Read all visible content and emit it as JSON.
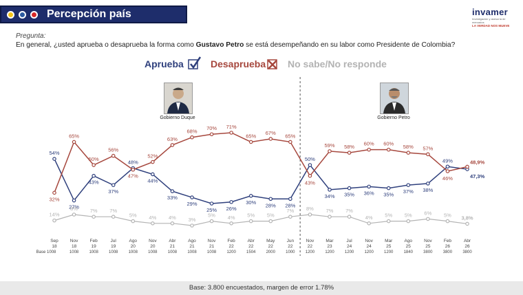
{
  "header": {
    "title": "Percepción país",
    "dot_colors": [
      "#f5c518",
      "#2c5aa0",
      "#d62828"
    ]
  },
  "logo": {
    "name": "invamer",
    "sub": "Investigación y asesoría de mercados",
    "tag": "LA VERDAD NOS MUEVE"
  },
  "question": {
    "label": "Pregunta:",
    "text_before": "En general, ¿usted aprueba o desaprueba la forma como ",
    "name": "Gustavo Petro",
    "text_after": " se está desempeñando en su labor como Presidente de Colombia?"
  },
  "legend": {
    "approve": "Aprueba",
    "disapprove": "Desaprueba",
    "dontknow": "No sabe/No responde"
  },
  "photos": {
    "left_caption": "Gobierno Duque",
    "right_caption": "Gobierno Petro"
  },
  "footer": "Base: 3.800 encuestados, margen de error 1.78%",
  "chart_data": {
    "type": "line",
    "x": [
      {
        "m": "Sep",
        "y": "18",
        "base": "Base 1008"
      },
      {
        "m": "Nov",
        "y": "18",
        "base": "1008"
      },
      {
        "m": "Feb",
        "y": "19",
        "base": "1008"
      },
      {
        "m": "Jul",
        "y": "19",
        "base": "1008"
      },
      {
        "m": "Ago",
        "y": "20",
        "base": "1008"
      },
      {
        "m": "Nov",
        "y": "20",
        "base": "1008"
      },
      {
        "m": "Abr",
        "y": "21",
        "base": "1008"
      },
      {
        "m": "Ago",
        "y": "21",
        "base": "1008"
      },
      {
        "m": "Nov",
        "y": "21",
        "base": "1008"
      },
      {
        "m": "Feb",
        "y": "22",
        "base": "1200"
      },
      {
        "m": "Abr",
        "y": "22",
        "base": "1504"
      },
      {
        "m": "May",
        "y": "22",
        "base": "2000"
      },
      {
        "m": "Jun",
        "y": "22",
        "base": "1000"
      },
      {
        "m": "Nov",
        "y": "22",
        "base": "1200"
      },
      {
        "m": "Mar",
        "y": "23",
        "base": "1200"
      },
      {
        "m": "Jul",
        "y": "24",
        "base": "1200"
      },
      {
        "m": "Nov",
        "y": "24",
        "base": "1200"
      },
      {
        "m": "Mar",
        "y": "25",
        "base": "1200"
      },
      {
        "m": "Ago",
        "y": "25",
        "base": "1840"
      },
      {
        "m": "Nov",
        "y": "25",
        "base": "3800"
      },
      {
        "m": "Feb",
        "y": "26",
        "base": "3800"
      },
      {
        "m": "Abr",
        "y": "26",
        "base": "3800"
      }
    ],
    "series": [
      {
        "name": "Aprueba",
        "color": "#2e3f7c",
        "values": [
          54,
          27,
          43,
          37,
          48,
          44,
          33,
          29,
          25,
          26,
          30,
          28,
          28,
          50,
          34,
          35,
          36,
          35,
          37,
          38,
          49,
          47.3
        ],
        "labels": [
          "54%",
          "27%",
          "43%",
          "37%",
          "48%",
          "44%",
          "33%",
          "29%",
          "25%",
          "26%",
          "30%",
          "28%",
          "28%",
          "50%",
          "34%",
          "35%",
          "36%",
          "35%",
          "37%",
          "38%",
          "49%",
          "47,3%"
        ]
      },
      {
        "name": "Desaprueba",
        "color": "#a6473d",
        "values": [
          32,
          65,
          50,
          56,
          47,
          52,
          63,
          68,
          70,
          71,
          65,
          67,
          65,
          43,
          59,
          58,
          60,
          60,
          58,
          57,
          46,
          48.9
        ],
        "labels": [
          "32%",
          "65%",
          "50%",
          "56%",
          "47%",
          "52%",
          "63%",
          "68%",
          "70%",
          "71%",
          "65%",
          "67%",
          "65%",
          "43%",
          "59%",
          "58%",
          "60%",
          "60%",
          "58%",
          "57%",
          "46%",
          "48,9%"
        ]
      },
      {
        "name": "No sabe/No responde",
        "color": "#b3b3b3",
        "values": [
          14,
          8,
          7,
          7,
          5,
          4,
          4,
          3,
          5,
          4,
          5,
          5,
          7,
          8,
          7,
          7,
          4,
          5,
          5,
          6,
          5,
          3.8
        ],
        "labels": [
          "14%",
          "8%",
          "7%",
          "7%",
          "5%",
          "4%",
          "4%",
          "3%",
          "5%",
          "4%",
          "5%",
          "5%",
          "7%",
          "8%",
          "7%",
          "7%",
          "4%",
          "5%",
          "5%",
          "6%",
          "5%",
          "3,8%"
        ]
      }
    ],
    "divider_after_index": 12
  }
}
